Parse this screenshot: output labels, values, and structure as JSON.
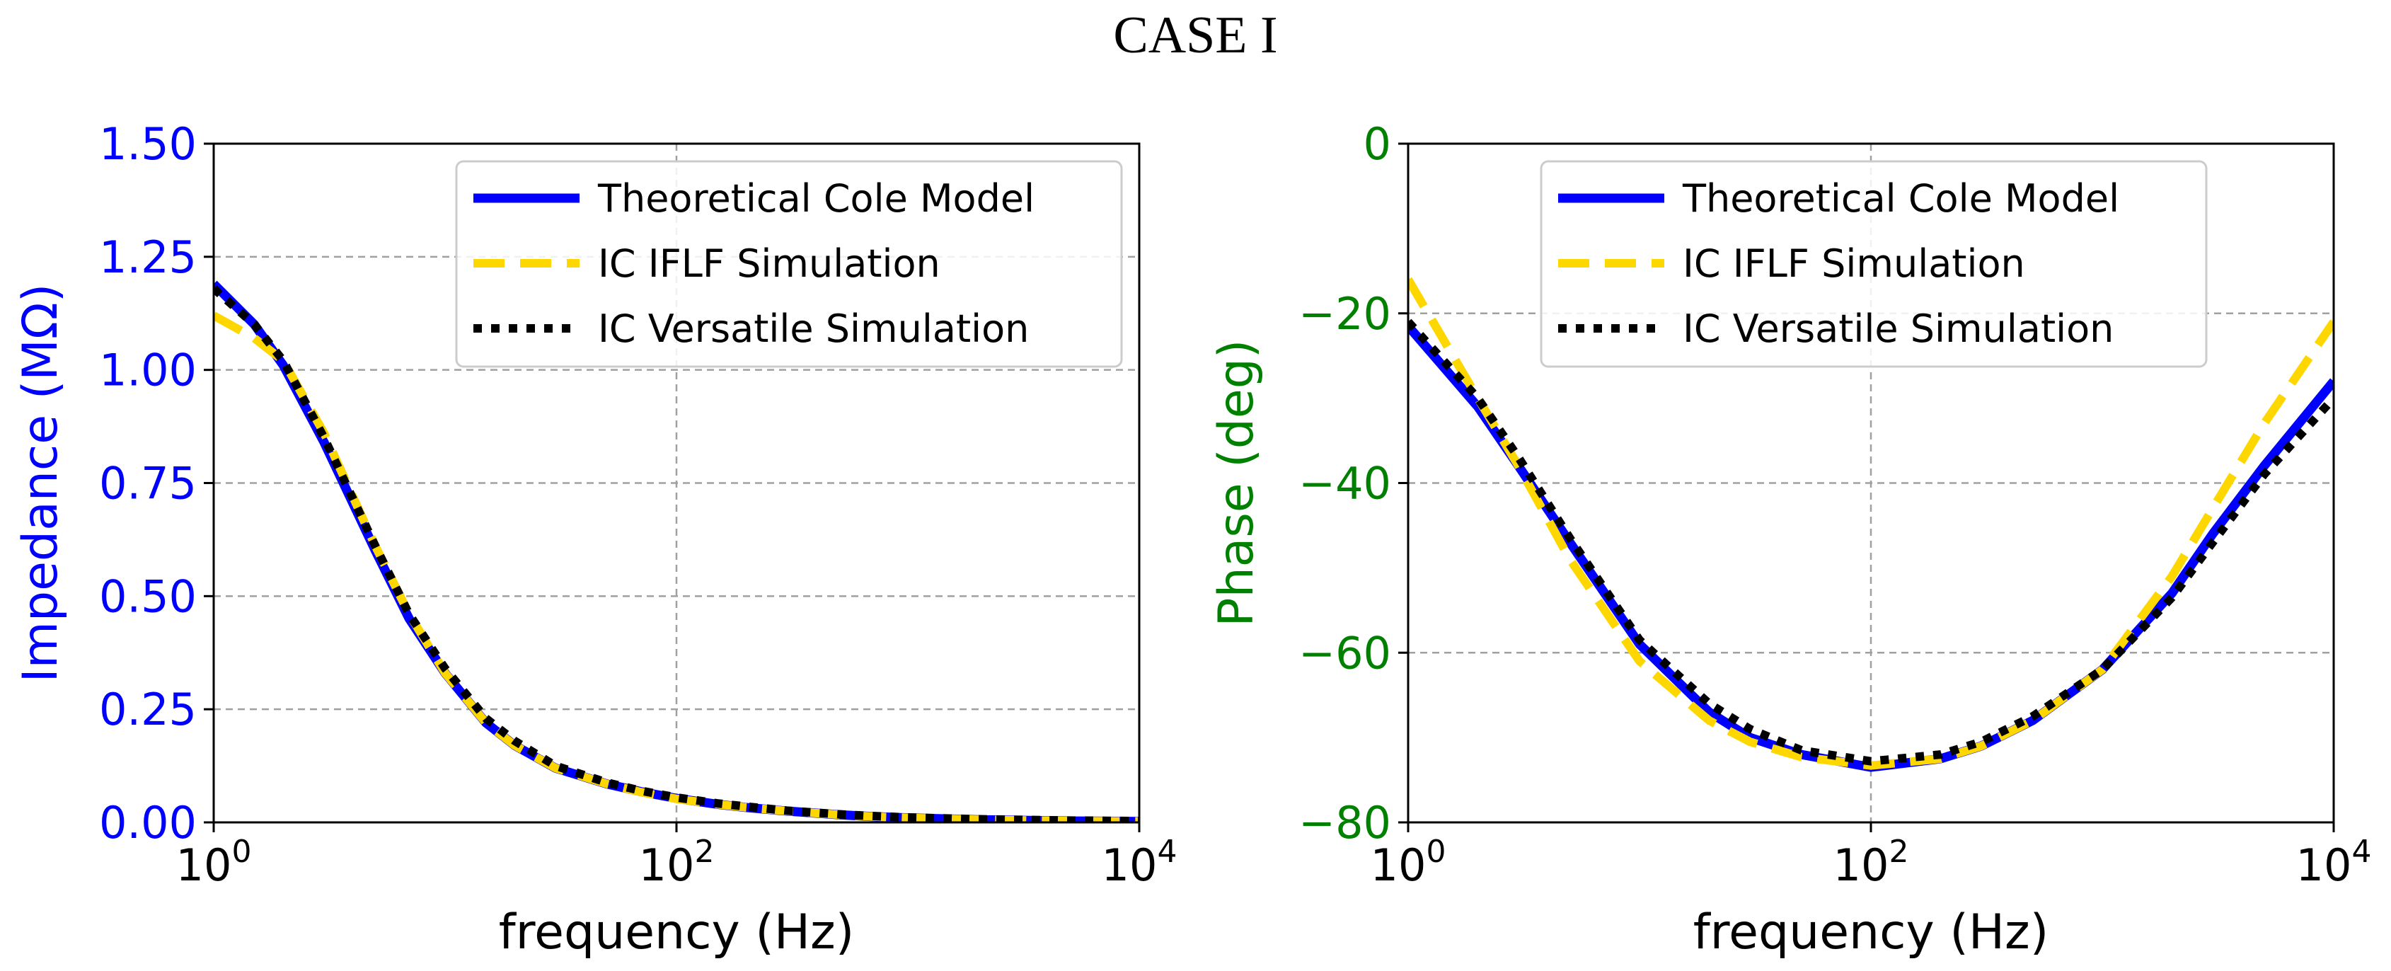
{
  "figure": {
    "title": "CASE I"
  },
  "colors": {
    "cole": "#0000ff",
    "iflf": "#ffd700",
    "versatile": "#000000",
    "left_axis": "#0000ff",
    "right_axis": "#008000"
  },
  "chart_data": [
    {
      "type": "line",
      "xscale": "log",
      "xlabel": "frequency (Hz)",
      "ylabel": "Impedance (MΩ)",
      "xlim": [
        1,
        10000
      ],
      "ylim": [
        0,
        1.5
      ],
      "xticks": [
        {
          "value": 1,
          "base": "10",
          "exp": "0"
        },
        {
          "value": 100,
          "base": "10",
          "exp": "2"
        },
        {
          "value": 10000,
          "base": "10",
          "exp": "4"
        }
      ],
      "yticks": [
        "0.00",
        "0.25",
        "0.50",
        "0.75",
        "1.00",
        "1.25",
        "1.50"
      ],
      "grid": true,
      "legend_position": "top-right",
      "series": [
        {
          "name": "Theoretical Cole Model",
          "style": "solid",
          "color": "#0000ff",
          "x": [
            1,
            1.5,
            2,
            3,
            5,
            7,
            10,
            15,
            20,
            30,
            50,
            70,
            100,
            150,
            200,
            300,
            500,
            700,
            1000,
            2000,
            5000,
            10000
          ],
          "y": [
            1.19,
            1.1,
            1.01,
            0.84,
            0.6,
            0.45,
            0.33,
            0.22,
            0.17,
            0.12,
            0.085,
            0.068,
            0.053,
            0.04,
            0.033,
            0.025,
            0.017,
            0.013,
            0.01,
            0.006,
            0.003,
            0.002
          ]
        },
        {
          "name": "IC IFLF Simulation",
          "style": "dashed",
          "color": "#ffd700",
          "x": [
            1,
            1.5,
            2,
            3,
            5,
            7,
            10,
            15,
            20,
            30,
            50,
            70,
            100,
            150,
            200,
            300,
            500,
            700,
            1000,
            2000,
            5000,
            10000
          ],
          "y": [
            1.12,
            1.07,
            1.02,
            0.86,
            0.61,
            0.46,
            0.33,
            0.22,
            0.17,
            0.12,
            0.085,
            0.067,
            0.052,
            0.04,
            0.033,
            0.025,
            0.017,
            0.013,
            0.01,
            0.006,
            0.003,
            0.002
          ]
        },
        {
          "name": "IC Versatile Simulation",
          "style": "dotted",
          "color": "#000000",
          "x": [
            1,
            1.5,
            2,
            3,
            5,
            7,
            10,
            15,
            20,
            30,
            50,
            70,
            100,
            150,
            200,
            300,
            500,
            700,
            1000,
            2000,
            5000,
            10000
          ],
          "y": [
            1.18,
            1.1,
            1.02,
            0.85,
            0.61,
            0.46,
            0.34,
            0.23,
            0.18,
            0.125,
            0.088,
            0.07,
            0.055,
            0.042,
            0.035,
            0.026,
            0.018,
            0.014,
            0.011,
            0.007,
            0.004,
            0.003
          ]
        }
      ]
    },
    {
      "type": "line",
      "xscale": "log",
      "xlabel": "frequency (Hz)",
      "ylabel": "Phase (deg)",
      "xlim": [
        1,
        10000
      ],
      "ylim": [
        -80,
        0
      ],
      "xticks": [
        {
          "value": 1,
          "base": "10",
          "exp": "0"
        },
        {
          "value": 100,
          "base": "10",
          "exp": "2"
        },
        {
          "value": 10000,
          "base": "10",
          "exp": "4"
        }
      ],
      "yticks": [
        "−80",
        "−60",
        "−40",
        "−20",
        "0"
      ],
      "grid": true,
      "legend_position": "top-center",
      "series": [
        {
          "name": "Theoretical Cole Model",
          "style": "solid",
          "color": "#0000ff",
          "x": [
            1,
            2,
            3,
            5,
            10,
            20,
            30,
            50,
            100,
            200,
            300,
            500,
            1000,
            2000,
            3000,
            5000,
            10000
          ],
          "y": [
            -21.5,
            -31,
            -38,
            -47,
            -59,
            -67,
            -70,
            -72,
            -73.5,
            -72.5,
            -71,
            -68,
            -62,
            -53,
            -46,
            -38,
            -28
          ]
        },
        {
          "name": "IC IFLF Simulation",
          "style": "dashed",
          "color": "#ffd700",
          "x": [
            1,
            2,
            3,
            5,
            10,
            20,
            30,
            50,
            100,
            200,
            300,
            500,
            1000,
            2000,
            3000,
            5000,
            10000
          ],
          "y": [
            -16,
            -30,
            -38,
            -49,
            -61,
            -68,
            -70.5,
            -72.3,
            -73.3,
            -72.5,
            -71,
            -68,
            -62,
            -51,
            -43,
            -33,
            -21
          ]
        },
        {
          "name": "IC Versatile Simulation",
          "style": "dotted",
          "color": "#000000",
          "x": [
            1,
            2,
            3,
            5,
            10,
            20,
            30,
            50,
            100,
            200,
            300,
            500,
            1000,
            2000,
            3000,
            5000,
            10000
          ],
          "y": [
            -21,
            -30,
            -37,
            -46.5,
            -58.5,
            -66,
            -69,
            -71.5,
            -72.8,
            -72,
            -70.5,
            -67.5,
            -62,
            -53.5,
            -47,
            -39,
            -30
          ]
        }
      ]
    }
  ]
}
